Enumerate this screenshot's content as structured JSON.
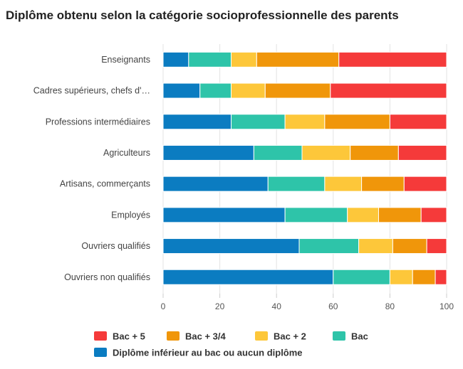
{
  "chart_data": {
    "type": "bar",
    "orientation": "horizontal",
    "stacked": true,
    "title": "Diplôme obtenu selon la catégorie socioprofessionnelle des parents",
    "categories": [
      "Enseignants",
      "Cadres supérieurs, chefs d'…",
      "Professions intermédiaires",
      "Agriculteurs",
      "Artisans, commerçants",
      "Employés",
      "Ouvriers qualifiés",
      "Ouvriers non qualifiés"
    ],
    "series": [
      {
        "name": "Diplôme inférieur au bac ou aucun diplôme",
        "color": "#0b7cc1",
        "values": [
          9,
          13,
          24,
          32,
          37,
          43,
          48,
          60
        ]
      },
      {
        "name": "Bac",
        "color": "#2ec4a9",
        "values": [
          15,
          11,
          19,
          17,
          20,
          22,
          21,
          20
        ]
      },
      {
        "name": "Bac + 2",
        "color": "#fdc73a",
        "values": [
          9,
          12,
          14,
          17,
          13,
          11,
          12,
          8
        ]
      },
      {
        "name": "Bac + 3/4",
        "color": "#f0960a",
        "values": [
          29,
          23,
          23,
          17,
          15,
          15,
          12,
          8
        ]
      },
      {
        "name": "Bac + 5",
        "color": "#f53a3a",
        "values": [
          38,
          41,
          20,
          17,
          15,
          9,
          7,
          4
        ]
      }
    ],
    "xlim": [
      0,
      100
    ],
    "xticks": [
      0,
      20,
      40,
      60,
      80,
      100
    ],
    "grid": true,
    "legend_position": "bottom",
    "legend_order": [
      "Bac + 5",
      "Bac + 3/4",
      "Bac + 2",
      "Bac",
      "Diplôme inférieur au bac ou aucun diplôme"
    ]
  }
}
